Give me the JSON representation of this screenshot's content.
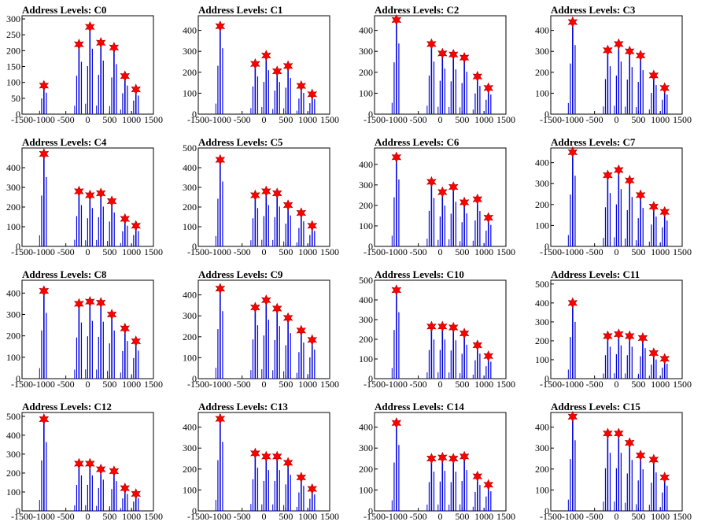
{
  "chart_data": [
    {
      "type": "bar",
      "title": "Address Levels: C0",
      "xlim": [
        -1500,
        1500
      ],
      "ylim": [
        0,
        310
      ],
      "yticks": [
        0,
        50,
        100,
        150,
        200,
        250,
        300
      ],
      "xticks": [
        -1500,
        -1000,
        -500,
        0,
        500,
        1000,
        1500
      ],
      "x": [
        -1000,
        -200,
        50,
        300,
        600,
        850,
        1100
      ],
      "values": [
        90,
        220,
        275,
        225,
        210,
        120,
        78
      ]
    },
    {
      "type": "bar",
      "title": "Address Levels: C1",
      "xlim": [
        -1500,
        1500
      ],
      "ylim": [
        0,
        470
      ],
      "yticks": [
        0,
        100,
        200,
        300,
        400
      ],
      "xticks": [
        -1500,
        -1000,
        -500,
        0,
        500,
        1000,
        1500
      ],
      "x": [
        -1000,
        -200,
        50,
        300,
        550,
        850,
        1100
      ],
      "values": [
        420,
        240,
        280,
        205,
        230,
        135,
        95
      ]
    },
    {
      "type": "bar",
      "title": "Address Levels: C2",
      "xlim": [
        -1500,
        1500
      ],
      "ylim": [
        0,
        470
      ],
      "yticks": [
        0,
        100,
        200,
        300,
        400
      ],
      "xticks": [
        -1500,
        -1000,
        -500,
        0,
        500,
        1000,
        1500
      ],
      "x": [
        -1000,
        -200,
        50,
        300,
        550,
        850,
        1100
      ],
      "values": [
        450,
        335,
        290,
        285,
        270,
        180,
        125
      ]
    },
    {
      "type": "bar",
      "title": "Address Levels: C3",
      "xlim": [
        -1500,
        1500
      ],
      "ylim": [
        0,
        470
      ],
      "yticks": [
        0,
        100,
        200,
        300,
        400
      ],
      "xticks": [
        -1500,
        -1000,
        -500,
        0,
        500,
        1000,
        1500
      ],
      "x": [
        -1000,
        -200,
        50,
        300,
        550,
        850,
        1100
      ],
      "values": [
        440,
        305,
        335,
        300,
        280,
        185,
        125
      ]
    },
    {
      "type": "bar",
      "title": "Address Levels: C4",
      "xlim": [
        -1500,
        1500
      ],
      "ylim": [
        0,
        500
      ],
      "yticks": [
        0,
        100,
        200,
        300,
        400
      ],
      "xticks": [
        -1500,
        -1000,
        -500,
        0,
        500,
        1000,
        1500
      ],
      "x": [
        -1000,
        -200,
        50,
        300,
        550,
        850,
        1100
      ],
      "values": [
        470,
        280,
        260,
        270,
        230,
        140,
        105
      ]
    },
    {
      "type": "bar",
      "title": "Address Levels: C5",
      "xlim": [
        -1500,
        1500
      ],
      "ylim": [
        0,
        500
      ],
      "yticks": [
        0,
        100,
        200,
        300,
        400,
        500
      ],
      "xticks": [
        -1500,
        -1000,
        -500,
        0,
        500,
        1000,
        1500
      ],
      "x": [
        -1000,
        -200,
        50,
        300,
        550,
        850,
        1100
      ],
      "values": [
        440,
        260,
        280,
        270,
        210,
        170,
        105
      ]
    },
    {
      "type": "bar",
      "title": "Address Levels: C6",
      "xlim": [
        -1500,
        1500
      ],
      "ylim": [
        0,
        480
      ],
      "yticks": [
        0,
        100,
        200,
        300,
        400
      ],
      "xticks": [
        -1500,
        -1000,
        -500,
        0,
        500,
        1000,
        1500
      ],
      "x": [
        -1000,
        -200,
        50,
        300,
        550,
        850,
        1100
      ],
      "values": [
        435,
        315,
        265,
        290,
        215,
        230,
        140
      ]
    },
    {
      "type": "bar",
      "title": "Address Levels: C7",
      "xlim": [
        -1500,
        1500
      ],
      "ylim": [
        0,
        470
      ],
      "yticks": [
        0,
        100,
        200,
        300,
        400
      ],
      "xticks": [
        -1500,
        -1000,
        -500,
        0,
        500,
        1000,
        1500
      ],
      "x": [
        -1000,
        -200,
        50,
        300,
        550,
        850,
        1100
      ],
      "values": [
        450,
        340,
        365,
        315,
        245,
        190,
        165
      ]
    },
    {
      "type": "bar",
      "title": "Address Levels: C8",
      "xlim": [
        -1500,
        1500
      ],
      "ylim": [
        0,
        460
      ],
      "yticks": [
        0,
        100,
        200,
        300,
        400
      ],
      "xticks": [
        -1500,
        -1000,
        -500,
        0,
        500,
        1000,
        1500
      ],
      "x": [
        -1000,
        -200,
        50,
        300,
        550,
        850,
        1100
      ],
      "values": [
        410,
        350,
        360,
        355,
        300,
        235,
        175
      ]
    },
    {
      "type": "bar",
      "title": "Address Levels: C9",
      "xlim": [
        -1500,
        1500
      ],
      "ylim": [
        0,
        470
      ],
      "yticks": [
        0,
        100,
        200,
        300,
        400
      ],
      "xticks": [
        -1500,
        -1000,
        -500,
        0,
        500,
        1000,
        1500
      ],
      "x": [
        -1000,
        -200,
        50,
        300,
        550,
        850,
        1100
      ],
      "values": [
        430,
        340,
        375,
        335,
        290,
        230,
        185
      ]
    },
    {
      "type": "bar",
      "title": "Address Levels: C10",
      "xlim": [
        -1500,
        1500
      ],
      "ylim": [
        0,
        500
      ],
      "yticks": [
        0,
        100,
        200,
        300,
        400,
        500
      ],
      "xticks": [
        -1500,
        -1000,
        -500,
        0,
        500,
        1000,
        1500
      ],
      "x": [
        -1000,
        -200,
        50,
        300,
        550,
        850,
        1100
      ],
      "values": [
        450,
        265,
        265,
        260,
        230,
        170,
        115
      ]
    },
    {
      "type": "bar",
      "title": "Address Levels: C11",
      "xlim": [
        -1500,
        1500
      ],
      "ylim": [
        0,
        520
      ],
      "yticks": [
        0,
        100,
        200,
        300,
        400,
        500
      ],
      "xticks": [
        -1500,
        -1000,
        -500,
        0,
        500,
        1000,
        1500
      ],
      "x": [
        -1000,
        -200,
        50,
        300,
        600,
        850,
        1100
      ],
      "values": [
        400,
        225,
        235,
        225,
        215,
        135,
        105
      ]
    },
    {
      "type": "bar",
      "title": "Address Levels: C12",
      "xlim": [
        -1500,
        1500
      ],
      "ylim": [
        0,
        520
      ],
      "yticks": [
        0,
        100,
        200,
        300,
        400,
        500
      ],
      "xticks": [
        -1500,
        -1000,
        -500,
        0,
        500,
        1000,
        1500
      ],
      "x": [
        -1000,
        -200,
        50,
        300,
        600,
        850,
        1100
      ],
      "values": [
        485,
        250,
        250,
        220,
        210,
        120,
        90
      ]
    },
    {
      "type": "bar",
      "title": "Address Levels: C13",
      "xlim": [
        -1500,
        1500
      ],
      "ylim": [
        0,
        470
      ],
      "yticks": [
        0,
        100,
        200,
        300,
        400
      ],
      "xticks": [
        -1500,
        -1000,
        -500,
        0,
        500,
        1000,
        1500
      ],
      "x": [
        -1000,
        -200,
        50,
        300,
        550,
        850,
        1100
      ],
      "values": [
        440,
        275,
        260,
        260,
        230,
        160,
        105
      ]
    },
    {
      "type": "bar",
      "title": "Address Levels: C14",
      "xlim": [
        -1500,
        1500
      ],
      "ylim": [
        0,
        470
      ],
      "yticks": [
        0,
        100,
        200,
        300,
        400
      ],
      "xticks": [
        -1500,
        -1000,
        -500,
        0,
        500,
        1000,
        1500
      ],
      "x": [
        -1000,
        -200,
        50,
        300,
        550,
        850,
        1100
      ],
      "values": [
        420,
        250,
        255,
        250,
        260,
        165,
        125
      ]
    },
    {
      "type": "bar",
      "title": "Address Levels: C15",
      "xlim": [
        -1500,
        1500
      ],
      "ylim": [
        0,
        470
      ],
      "yticks": [
        0,
        100,
        200,
        300,
        400
      ],
      "xticks": [
        -1500,
        -1000,
        -500,
        0,
        500,
        1000,
        1500
      ],
      "x": [
        -1000,
        -200,
        50,
        300,
        550,
        850,
        1100
      ],
      "values": [
        450,
        370,
        370,
        325,
        265,
        245,
        160
      ]
    }
  ],
  "colors": {
    "bar": "#0000dd",
    "marker": "#ff0000",
    "axis": "#000000"
  }
}
